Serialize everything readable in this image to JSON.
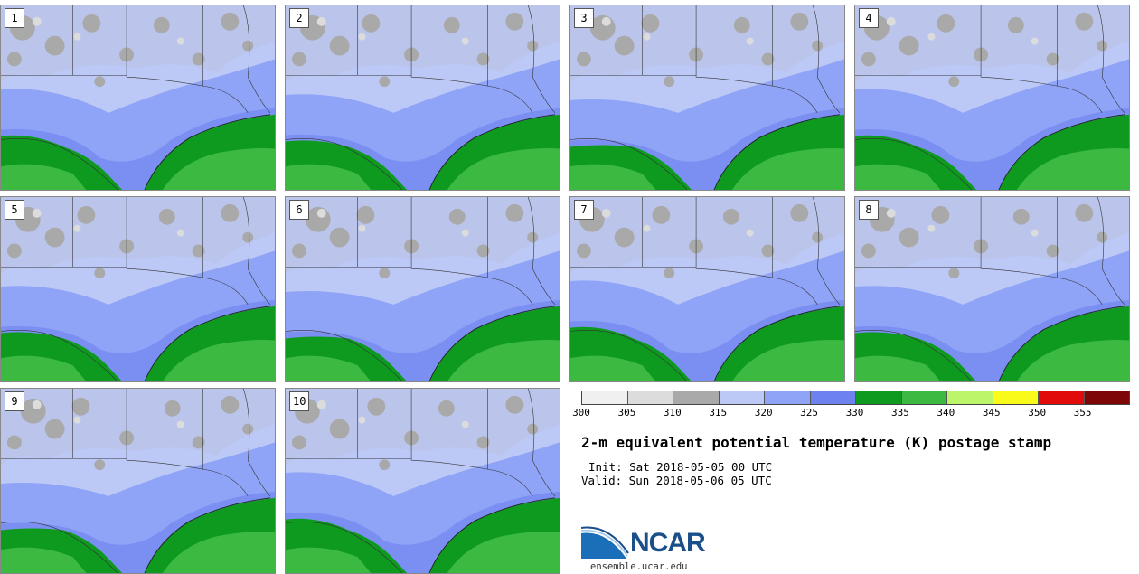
{
  "panels": [
    {
      "label": "1"
    },
    {
      "label": "2"
    },
    {
      "label": "3"
    },
    {
      "label": "4"
    },
    {
      "label": "5"
    },
    {
      "label": "6"
    },
    {
      "label": "7"
    },
    {
      "label": "8"
    },
    {
      "label": "9"
    },
    {
      "label": "10"
    }
  ],
  "colorbar": {
    "colors": [
      "#f0f0f0",
      "#dcdcdc",
      "#a9a9a9",
      "#bcc9f7",
      "#8fa3f7",
      "#6e82ef",
      "#0d9a1f",
      "#3cb940",
      "#bdf56a",
      "#f9f91a",
      "#e20b0b",
      "#7e0606"
    ],
    "ticks": [
      "300",
      "305",
      "310",
      "315",
      "320",
      "325",
      "330",
      "335",
      "340",
      "345",
      "350",
      "355"
    ]
  },
  "title": "2-m equivalent potential temperature (K) postage stamp",
  "init_text": "Init: Sat 2018-05-05 00 UTC",
  "valid_text": "Valid: Sun 2018-05-06 05 UTC",
  "logo": {
    "name": "NCAR",
    "url": "ensemble.ucar.edu"
  }
}
